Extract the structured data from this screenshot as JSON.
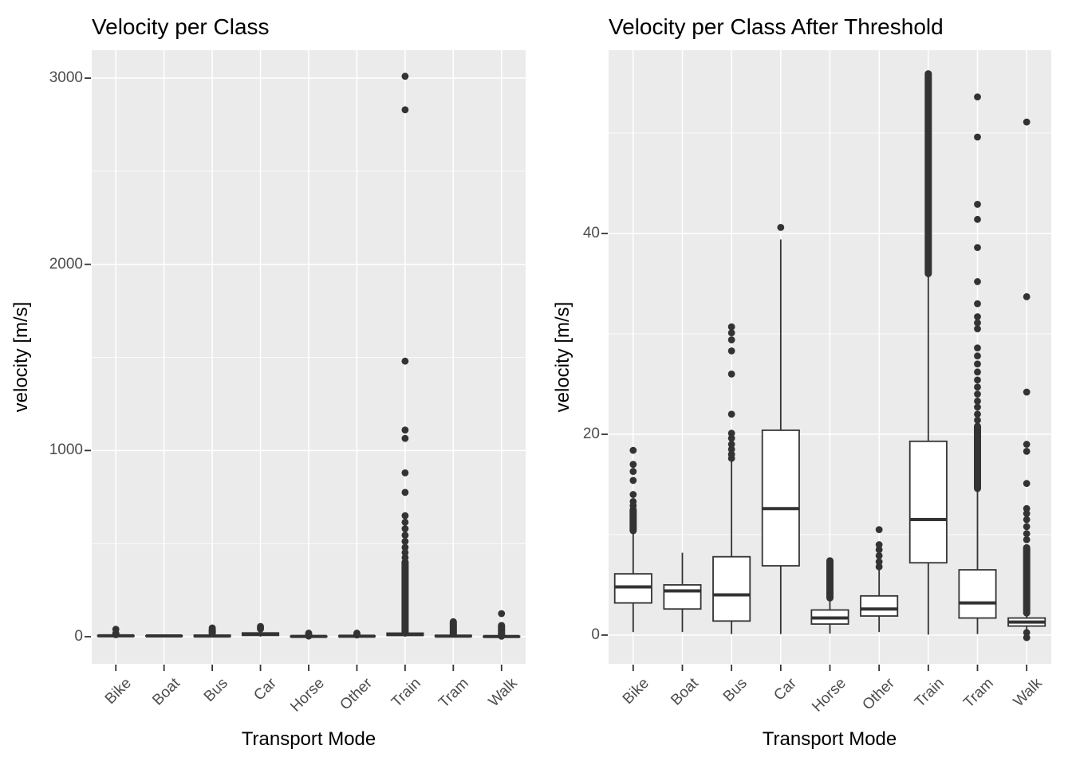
{
  "figure": {
    "background": "#FFFFFF",
    "panel_bg": "#EBEBEB",
    "grid_color": "#FFFFFF",
    "box_stroke": "#333333",
    "box_fill": "#FFFFFF",
    "tick_color": "#333333",
    "axis_text_color": "#4D4D4D",
    "title_color": "#000000"
  },
  "chart_data": [
    {
      "type": "boxplot",
      "title": "Velocity per Class",
      "xlabel": "Transport Mode",
      "ylabel": "velocity [m/s]",
      "legend": "none",
      "grid": "on",
      "categories": [
        "Bike",
        "Boat",
        "Bus",
        "Car",
        "Horse",
        "Other",
        "Train",
        "Tram",
        "Walk"
      ],
      "y_axis": {
        "ticks": [
          0,
          1000,
          2000,
          3000
        ],
        "minor_ticks": [
          500,
          1500,
          2500
        ],
        "range": [
          -145.5,
          3150
        ]
      },
      "boxes": [
        {
          "category": "Bike",
          "whisker_low": 0.2,
          "q1": 3.0,
          "median": 4.8,
          "q3": 6.2,
          "whisker_high": 10.5,
          "outlier_runs": [
            [
              11,
              18
            ]
          ],
          "outliers": [
            40
          ]
        },
        {
          "category": "Boat",
          "whisker_low": 0.2,
          "q1": 2.6,
          "median": 4.4,
          "q3": 5.0,
          "whisker_high": 8.2,
          "outlier_runs": [],
          "outliers": []
        },
        {
          "category": "Bus",
          "whisker_low": 0.1,
          "q1": 1.4,
          "median": 4.0,
          "q3": 7.8,
          "whisker_high": 17.3,
          "outlier_runs": [
            [
              18,
              34
            ]
          ],
          "outliers": [
            40,
            47
          ]
        },
        {
          "category": "Car",
          "whisker_low": 0.1,
          "q1": 6.9,
          "median": 12.6,
          "q3": 20.4,
          "whisker_high": 39.4,
          "outlier_runs": [],
          "outliers": [
            41,
            48,
            55
          ]
        },
        {
          "category": "Horse",
          "whisker_low": 0.15,
          "q1": 1.1,
          "median": 1.7,
          "q3": 2.5,
          "whisker_high": 3.4,
          "outlier_runs": [
            [
              4,
              7.5
            ]
          ],
          "outliers": [
            12,
            19
          ]
        },
        {
          "category": "Other",
          "whisker_low": 0.3,
          "q1": 1.9,
          "median": 2.6,
          "q3": 3.9,
          "whisker_high": 6.5,
          "outlier_runs": [],
          "outliers": [
            9,
            13,
            19
          ]
        },
        {
          "category": "Train",
          "whisker_low": 0.05,
          "q1": 7.2,
          "median": 11.5,
          "q3": 19.3,
          "whisker_high": 36.0,
          "outlier_runs": [
            [
              20,
              400
            ]
          ],
          "outliers": [
            425,
            452,
            480,
            512,
            545,
            580,
            615,
            650,
            775,
            880,
            1065,
            1110,
            1480,
            2830,
            3010
          ]
        },
        {
          "category": "Tram",
          "whisker_low": 0.1,
          "q1": 1.7,
          "median": 3.2,
          "q3": 6.5,
          "whisker_high": 14.3,
          "outlier_runs": [
            [
              15,
              80
            ]
          ],
          "outliers": []
        },
        {
          "category": "Walk",
          "whisker_low": 0.5,
          "q1": 0.9,
          "median": 1.3,
          "q3": 1.7,
          "whisker_high": 2.1,
          "outlier_runs": [
            [
              3,
              60
            ]
          ],
          "outliers": [
            124
          ]
        }
      ]
    },
    {
      "type": "boxplot",
      "title": "Velocity per Class After Threshold",
      "xlabel": "Transport Mode",
      "ylabel": "velocity [m/s]",
      "legend": "none",
      "grid": "on",
      "categories": [
        "Bike",
        "Boat",
        "Bus",
        "Car",
        "Horse",
        "Other",
        "Train",
        "Tram",
        "Walk"
      ],
      "y_axis": {
        "ticks": [
          0,
          20,
          40
        ],
        "minor_ticks": [
          10,
          30,
          50
        ],
        "range": [
          -2.86,
          58.25
        ]
      },
      "boxes": [
        {
          "category": "Bike",
          "whisker_low": 0.3,
          "q1": 3.2,
          "median": 4.8,
          "q3": 6.1,
          "whisker_high": 10.2,
          "outlier_runs": [
            [
              10.4,
              12.5
            ]
          ],
          "outliers": [
            12.9,
            13.3,
            14.0,
            15.4,
            16.3,
            17.0,
            18.4
          ]
        },
        {
          "category": "Boat",
          "whisker_low": 0.3,
          "q1": 2.6,
          "median": 4.4,
          "q3": 5.0,
          "whisker_high": 8.2,
          "outlier_runs": [],
          "outliers": []
        },
        {
          "category": "Bus",
          "whisker_low": 0.1,
          "q1": 1.4,
          "median": 4.0,
          "q3": 7.8,
          "whisker_high": 17.3,
          "outlier_runs": [],
          "outliers": [
            17.6,
            18.0,
            18.5,
            19.0,
            19.6,
            20.1,
            22.0,
            26.0,
            28.3,
            29.4,
            30.1,
            30.7
          ]
        },
        {
          "category": "Car",
          "whisker_low": 0.1,
          "q1": 6.9,
          "median": 12.6,
          "q3": 20.4,
          "whisker_high": 39.4,
          "outlier_runs": [],
          "outliers": [
            40.6
          ]
        },
        {
          "category": "Horse",
          "whisker_low": 0.15,
          "q1": 1.1,
          "median": 1.7,
          "q3": 2.5,
          "whisker_high": 3.4,
          "outlier_runs": [
            [
              3.7,
              7.4
            ]
          ],
          "outliers": []
        },
        {
          "category": "Other",
          "whisker_low": 0.3,
          "q1": 1.9,
          "median": 2.6,
          "q3": 3.9,
          "whisker_high": 6.5,
          "outlier_runs": [],
          "outliers": [
            6.8,
            7.3,
            7.9,
            8.5,
            9.0,
            10.5
          ]
        },
        {
          "category": "Train",
          "whisker_low": 0.05,
          "q1": 7.2,
          "median": 11.5,
          "q3": 19.3,
          "whisker_high": 36.0,
          "outlier_runs": [
            [
              36.0,
              55.9
            ]
          ],
          "outliers": []
        },
        {
          "category": "Tram",
          "whisker_low": 0.1,
          "q1": 1.7,
          "median": 3.2,
          "q3": 6.5,
          "whisker_high": 14.3,
          "outlier_runs": [
            [
              14.6,
              20.8
            ]
          ],
          "outliers": [
            21.4,
            22.0,
            22.7,
            23.3,
            24.0,
            24.7,
            25.4,
            26.2,
            27.0,
            27.8,
            28.6,
            30.5,
            31.1,
            31.7,
            33.0,
            35.2,
            38.6,
            41.4,
            42.9,
            49.6,
            53.6
          ]
        },
        {
          "category": "Walk",
          "whisker_low": 0.5,
          "q1": 0.9,
          "median": 1.3,
          "q3": 1.7,
          "whisker_high": 2.1,
          "outlier_runs": [
            [
              2.2,
              8.7
            ]
          ],
          "outliers": [
            9.5,
            10.1,
            10.8,
            11.5,
            12.1,
            12.6,
            15.1,
            18.3,
            19.0,
            24.2,
            33.7,
            51.1,
            0.25,
            -0.25
          ]
        }
      ]
    }
  ]
}
